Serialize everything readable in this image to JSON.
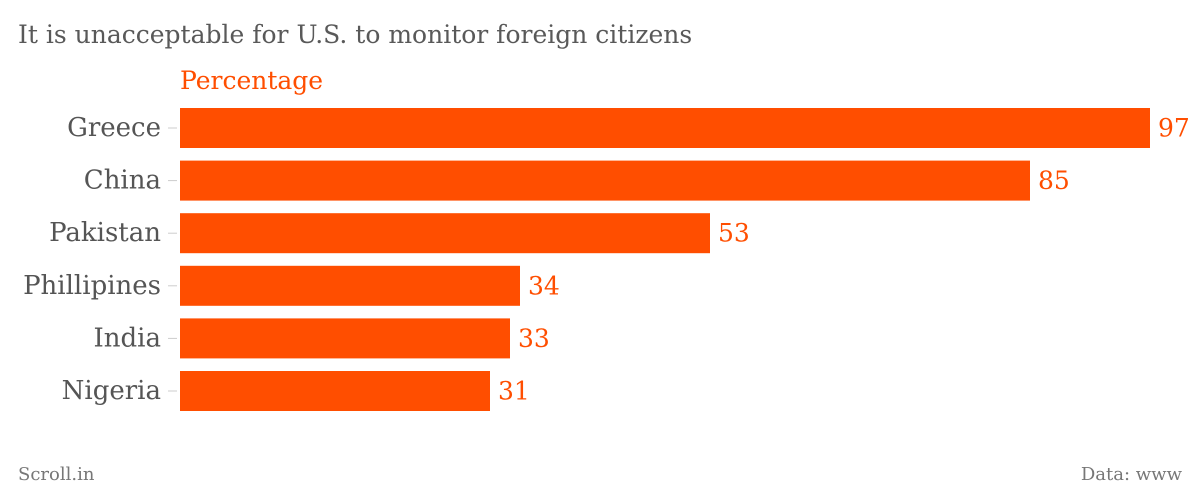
{
  "header": {
    "title": "It is unacceptable for U.S. to monitor foreign citizens"
  },
  "footer": {
    "source_left": "Scroll.in",
    "source_right": "Data: www"
  },
  "colors": {
    "bar": "#ff4e00",
    "label": "#ff4e00",
    "category_text": "#555555",
    "tick": "#cccccc"
  },
  "chart_data": {
    "type": "bar",
    "orientation": "horizontal",
    "title": "It is unacceptable for U.S. to monitor foreign citizens",
    "categories": [
      "Greece",
      "China",
      "Pakistan",
      "Phillipines",
      "India",
      "Nigeria"
    ],
    "series": [
      {
        "name": "Percentage",
        "values": [
          97,
          85,
          53,
          34,
          33,
          31
        ]
      }
    ],
    "xlim": [
      0,
      97
    ],
    "grid": false,
    "data_labels": true
  }
}
